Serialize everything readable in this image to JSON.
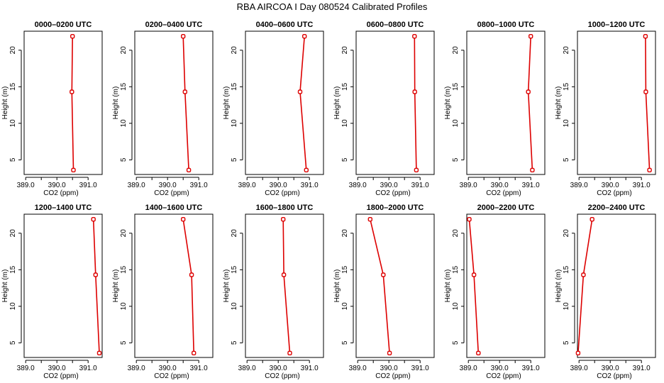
{
  "title": "RBA AIRCOA I  Day 080524  Calibrated Profiles",
  "colors": {
    "series": "#dd0000",
    "frame": "#000000",
    "background": "#ffffff"
  },
  "chart_data": {
    "type": "line",
    "xlabel": "CO2 (ppm)",
    "ylabel": "Height (m)",
    "xlim": [
      388.95,
      391.45
    ],
    "ylim": [
      3.0,
      22.6
    ],
    "xticks": [
      389.0,
      389.5,
      390.0,
      390.5,
      391.0
    ],
    "xtick_labels": [
      "389.0",
      "",
      "390.0",
      "",
      "391.0"
    ],
    "yticks": [
      5,
      10,
      15,
      20
    ],
    "ytick_labels": [
      "5",
      "10",
      "15",
      "20"
    ],
    "grid": false,
    "legend": "none",
    "heights": [
      21.9,
      14.3,
      3.6
    ],
    "panels": [
      {
        "title": "0000–0200 UTC",
        "co2": [
          390.5,
          390.48,
          390.53
        ]
      },
      {
        "title": "0200–0400 UTC",
        "co2": [
          390.5,
          390.56,
          390.68
        ]
      },
      {
        "title": "0400–0600 UTC",
        "co2": [
          390.84,
          390.7,
          390.9
        ]
      },
      {
        "title": "0600–0800 UTC",
        "co2": [
          390.82,
          390.83,
          390.88
        ]
      },
      {
        "title": "0800–1000 UTC",
        "co2": [
          391.0,
          390.92,
          391.05
        ]
      },
      {
        "title": "1000–1200 UTC",
        "co2": [
          391.13,
          391.14,
          391.26
        ]
      },
      {
        "title": "1200–1400 UTC",
        "co2": [
          391.17,
          391.24,
          391.36
        ]
      },
      {
        "title": "1400–1600 UTC",
        "co2": [
          390.5,
          390.77,
          390.84
        ]
      },
      {
        "title": "1600–1800 UTC",
        "co2": [
          390.16,
          390.18,
          390.37
        ]
      },
      {
        "title": "1800–2000 UTC",
        "co2": [
          389.4,
          389.82,
          390.02
        ]
      },
      {
        "title": "2000–2200 UTC",
        "co2": [
          389.03,
          389.18,
          389.32
        ]
      },
      {
        "title": "2200–2400 UTC",
        "co2": [
          389.42,
          389.14,
          388.97
        ]
      }
    ]
  }
}
